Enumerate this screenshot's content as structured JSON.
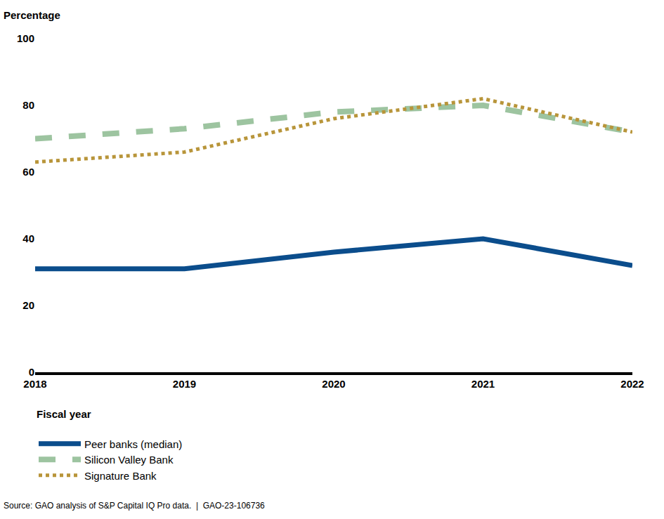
{
  "chart_data": {
    "type": "line",
    "y_label": "Percentage",
    "x_label": "Fiscal year",
    "categories": [
      "2018",
      "2019",
      "2020",
      "2021",
      "2022"
    ],
    "series": [
      {
        "name": "Peer banks (median)",
        "color": "#0b4d8c",
        "line_style": "solid",
        "values": [
          31,
          31,
          36,
          40,
          32
        ]
      },
      {
        "name": "Silicon Valley Bank",
        "color": "#9dc4a0",
        "line_style": "dash",
        "values": [
          70,
          73,
          78,
          80,
          72
        ]
      },
      {
        "name": "Signature Bank",
        "color": "#b8953a",
        "line_style": "dot",
        "values": [
          63,
          66,
          76,
          82,
          72
        ]
      }
    ],
    "ylim": [
      0,
      100
    ],
    "yticks": [
      0,
      20,
      40,
      60,
      80,
      100
    ],
    "grid": false,
    "legend": "bottom left",
    "annotations": [
      "Source: GAO analysis of S&P Capital IQ Pro data.  |  GAO-23-106736"
    ]
  }
}
